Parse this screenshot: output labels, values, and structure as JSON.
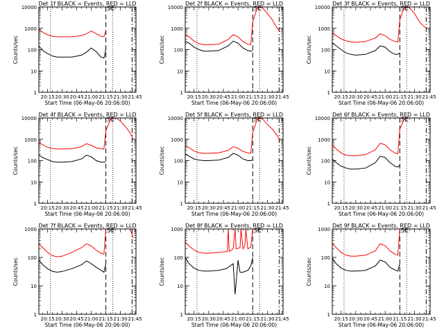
{
  "figure": {
    "x_title": "Start Time (06-May-06 20:06:00)",
    "y_title": "Counts/sec",
    "marker_label": "SE"
  },
  "chart_data": [
    {
      "type": "line",
      "title": "Det 1f BLACK = Events, RED = LLD",
      "xlabel": "Start Time (06-May-06 20:06:00)",
      "ylabel": "Counts/sec",
      "yscale": "log",
      "ylim": [
        1,
        10000
      ],
      "x_tick_labels": [
        "20:15",
        "20:30",
        "20:45",
        "21:00",
        "21:15",
        "21:30",
        "21:45"
      ],
      "y_tick_labels": [
        "1",
        "10",
        "100",
        "1000",
        "10000"
      ],
      "dotted_lines": [
        "20:18",
        "21:22"
      ],
      "dashed_lines": [
        "21:15",
        "21:42"
      ],
      "series": [
        {
          "name": "Events",
          "color": "#000000",
          "x": [
            "20:06",
            "20:10",
            "20:15",
            "20:20",
            "20:25",
            "20:30",
            "20:40",
            "20:50",
            "20:55",
            "21:00",
            "21:05",
            "21:10",
            "21:13",
            "21:14",
            "21:15"
          ],
          "values": [
            150,
            90,
            65,
            50,
            45,
            45,
            45,
            55,
            75,
            120,
            80,
            45,
            40,
            60,
            110
          ]
        },
        {
          "name": "LLD",
          "color": "#ff0000",
          "x": [
            "20:06",
            "20:10",
            "20:15",
            "20:20",
            "20:25",
            "20:30",
            "20:40",
            "20:50",
            "20:55",
            "21:00",
            "21:05",
            "21:10",
            "21:13",
            "21:14",
            "21:15"
          ],
          "values": [
            900,
            650,
            500,
            420,
            400,
            400,
            400,
            450,
            550,
            750,
            550,
            420,
            400,
            520,
            800
          ]
        }
      ]
    },
    {
      "type": "line",
      "title": "Det 2f BLACK = Events, RED = LLD",
      "xlabel": "Start Time (06-May-06 20:06:00)",
      "ylabel": "Counts/sec",
      "yscale": "log",
      "ylim": [
        1,
        10000
      ],
      "x_tick_labels": [
        "20:15",
        "20:30",
        "20:45",
        "21:00",
        "21:15",
        "21:30",
        "21:45"
      ],
      "y_tick_labels": [
        "1",
        "10",
        "100",
        "1000",
        "10000"
      ],
      "dotted_lines": [
        "20:18",
        "21:22"
      ],
      "dashed_lines": [
        "21:15",
        "21:42"
      ],
      "series": [
        {
          "name": "Events",
          "color": "#000000",
          "x": [
            "20:06",
            "20:10",
            "20:15",
            "20:20",
            "20:25",
            "20:30",
            "20:40",
            "20:50",
            "20:55",
            "21:00",
            "21:05",
            "21:10",
            "21:13",
            "21:15"
          ],
          "values": [
            250,
            200,
            130,
            100,
            85,
            85,
            90,
            150,
            250,
            200,
            120,
            90,
            85,
            90
          ]
        },
        {
          "name": "LLD",
          "color": "#ff0000",
          "x": [
            "20:06",
            "20:10",
            "20:15",
            "20:20",
            "20:25",
            "20:30",
            "20:40",
            "20:50",
            "20:55",
            "21:00",
            "21:05",
            "21:10",
            "21:13",
            "21:15",
            "21:20",
            "21:25",
            "21:30",
            "21:35",
            "21:40",
            "21:43"
          ],
          "values": [
            500,
            400,
            250,
            190,
            170,
            170,
            180,
            300,
            500,
            400,
            240,
            180,
            170,
            2000,
            10000,
            9000,
            5000,
            2500,
            1000,
            700
          ]
        }
      ]
    },
    {
      "type": "line",
      "title": "Det 3f BLACK = Events, RED = LLD",
      "xlabel": "Start Time (06-May-06 20:06:00)",
      "ylabel": "Counts/sec",
      "yscale": "log",
      "ylim": [
        1,
        10000
      ],
      "x_tick_labels": [
        "20:15",
        "20:30",
        "20:45",
        "21:00",
        "21:15",
        "21:30",
        "21:45"
      ],
      "y_tick_labels": [
        "1",
        "10",
        "100",
        "1000",
        "10000"
      ],
      "dotted_lines": [
        "20:18",
        "21:22"
      ],
      "dashed_lines": [
        "21:15",
        "21:42"
      ],
      "series": [
        {
          "name": "Events",
          "color": "#000000",
          "x": [
            "20:06",
            "20:10",
            "20:15",
            "20:20",
            "20:25",
            "20:30",
            "20:40",
            "20:50",
            "20:55",
            "21:00",
            "21:05",
            "21:10",
            "21:13",
            "21:15"
          ],
          "values": [
            200,
            150,
            100,
            70,
            60,
            55,
            60,
            90,
            150,
            130,
            80,
            60,
            60,
            70
          ]
        },
        {
          "name": "LLD",
          "color": "#ff0000",
          "x": [
            "20:06",
            "20:10",
            "20:15",
            "20:20",
            "20:25",
            "20:30",
            "20:40",
            "20:50",
            "20:55",
            "21:00",
            "21:05",
            "21:10",
            "21:13",
            "21:15",
            "21:20",
            "21:25",
            "21:30",
            "21:35",
            "21:40",
            "21:43"
          ],
          "values": [
            600,
            450,
            320,
            260,
            230,
            220,
            240,
            350,
            550,
            450,
            300,
            240,
            230,
            2500,
            11000,
            9000,
            5000,
            2000,
            1200,
            1000
          ]
        }
      ]
    },
    {
      "type": "line",
      "title": "Det 4f BLACK = Events, RED = LLD",
      "xlabel": "Start Time (06-May-06 20:06:00)",
      "ylabel": "Counts/sec",
      "yscale": "log",
      "ylim": [
        1,
        10000
      ],
      "x_tick_labels": [
        "20:15",
        "20:30",
        "20:45",
        "21:00",
        "21:15",
        "21:30",
        "21:45"
      ],
      "y_tick_labels": [
        "1",
        "10",
        "100",
        "1000",
        "10000"
      ],
      "dotted_lines": [
        "20:18",
        "21:22"
      ],
      "dashed_lines": [
        "21:15",
        "21:42"
      ],
      "series": [
        {
          "name": "Events",
          "color": "#000000",
          "x": [
            "20:06",
            "20:10",
            "20:15",
            "20:20",
            "20:25",
            "20:30",
            "20:40",
            "20:50",
            "20:55",
            "21:00",
            "21:05",
            "21:10",
            "21:13",
            "21:15"
          ],
          "values": [
            180,
            140,
            110,
            90,
            85,
            85,
            90,
            120,
            180,
            150,
            100,
            85,
            85,
            90
          ]
        },
        {
          "name": "LLD",
          "color": "#ff0000",
          "x": [
            "20:06",
            "20:10",
            "20:15",
            "20:20",
            "20:25",
            "20:30",
            "20:40",
            "20:50",
            "20:55",
            "21:00",
            "21:05",
            "21:10",
            "21:13",
            "21:15",
            "21:20",
            "21:25",
            "21:30",
            "21:35",
            "21:40",
            "21:43"
          ],
          "values": [
            700,
            550,
            420,
            370,
            350,
            350,
            360,
            450,
            620,
            520,
            400,
            360,
            350,
            2500,
            9000,
            11000,
            7000,
            4000,
            2000,
            1000
          ]
        }
      ]
    },
    {
      "type": "line",
      "title": "Det 5f BLACK = Events, RED = LLD",
      "xlabel": "Start Time (06-May-06 20:06:00)",
      "ylabel": "Counts/sec",
      "yscale": "log",
      "ylim": [
        1,
        10000
      ],
      "x_tick_labels": [
        "20:15",
        "20:30",
        "20:45",
        "21:00",
        "21:15",
        "21:30",
        "21:45"
      ],
      "y_tick_labels": [
        "1",
        "10",
        "100",
        "1000",
        "10000"
      ],
      "dotted_lines": [
        "20:18",
        "21:22"
      ],
      "dashed_lines": [
        "21:15",
        "21:42"
      ],
      "series": [
        {
          "name": "Events",
          "color": "#000000",
          "x": [
            "20:06",
            "20:10",
            "20:15",
            "20:20",
            "20:25",
            "20:30",
            "20:40",
            "20:50",
            "20:55",
            "21:00",
            "21:05",
            "21:10",
            "21:13",
            "21:15"
          ],
          "values": [
            200,
            160,
            120,
            105,
            100,
            100,
            105,
            140,
            220,
            180,
            120,
            100,
            100,
            110
          ]
        },
        {
          "name": "LLD",
          "color": "#ff0000",
          "x": [
            "20:06",
            "20:10",
            "20:15",
            "20:20",
            "20:25",
            "20:30",
            "20:40",
            "20:50",
            "20:55",
            "21:00",
            "21:05",
            "21:10",
            "21:13",
            "21:15",
            "21:20",
            "21:25",
            "21:30",
            "21:35",
            "21:40",
            "21:43"
          ],
          "values": [
            500,
            400,
            280,
            230,
            220,
            220,
            230,
            300,
            450,
            380,
            270,
            230,
            220,
            2000,
            10000,
            9000,
            5000,
            3000,
            1500,
            800
          ]
        }
      ]
    },
    {
      "type": "line",
      "title": "Det 6f BLACK = Events, RED = LLD",
      "xlabel": "Start Time (06-May-06 20:06:00)",
      "ylabel": "Counts/sec",
      "yscale": "log",
      "ylim": [
        1,
        10000
      ],
      "x_tick_labels": [
        "20:15",
        "20:30",
        "20:45",
        "21:00",
        "21:15",
        "21:30",
        "21:45"
      ],
      "y_tick_labels": [
        "1",
        "10",
        "100",
        "1000",
        "10000"
      ],
      "dotted_lines": [
        "20:18",
        "21:22"
      ],
      "dashed_lines": [
        "21:15",
        "21:42"
      ],
      "series": [
        {
          "name": "Events",
          "color": "#000000",
          "x": [
            "20:06",
            "20:10",
            "20:15",
            "20:20",
            "20:25",
            "20:30",
            "20:40",
            "20:50",
            "20:55",
            "21:00",
            "21:05",
            "21:10",
            "21:13",
            "21:15"
          ],
          "values": [
            120,
            80,
            55,
            45,
            40,
            40,
            45,
            80,
            160,
            140,
            80,
            55,
            50,
            60
          ]
        },
        {
          "name": "LLD",
          "color": "#ff0000",
          "x": [
            "20:06",
            "20:10",
            "20:15",
            "20:20",
            "20:25",
            "20:30",
            "20:40",
            "20:50",
            "20:55",
            "21:00",
            "21:05",
            "21:10",
            "21:13",
            "21:15",
            "21:20",
            "21:25",
            "21:30",
            "21:35",
            "21:40",
            "21:43"
          ],
          "values": [
            550,
            350,
            230,
            180,
            170,
            170,
            190,
            320,
            650,
            550,
            320,
            230,
            210,
            3000,
            10000,
            10000,
            10000,
            10000,
            10000,
            10000
          ]
        }
      ]
    },
    {
      "type": "line",
      "title": "Det 7f BLACK = Events, RED = LLD",
      "xlabel": "Start Time (06-May-06 20:06:00)",
      "ylabel": "Counts/sec",
      "yscale": "log",
      "ylim": [
        1,
        1000
      ],
      "x_tick_labels": [
        "20:15",
        "20:30",
        "20:45",
        "21:00",
        "21:15",
        "21:30",
        "21:45"
      ],
      "y_tick_labels": [
        "1",
        "10",
        "100",
        "1000"
      ],
      "dotted_lines": [
        "20:18",
        "21:22"
      ],
      "dashed_lines": [
        "21:15",
        "21:42"
      ],
      "series": [
        {
          "name": "Events",
          "color": "#000000",
          "x": [
            "20:06",
            "20:10",
            "20:15",
            "20:20",
            "20:25",
            "20:30",
            "20:40",
            "20:50",
            "20:55",
            "21:00",
            "21:05",
            "21:10",
            "21:13",
            "21:15"
          ],
          "values": [
            80,
            55,
            40,
            32,
            30,
            32,
            40,
            55,
            75,
            60,
            45,
            35,
            30,
            60
          ]
        },
        {
          "name": "LLD",
          "color": "#ff0000",
          "x": [
            "20:06",
            "20:10",
            "20:15",
            "20:20",
            "20:25",
            "20:30",
            "20:40",
            "20:50",
            "20:55",
            "21:00",
            "21:05",
            "21:10",
            "21:13",
            "21:15",
            "21:20",
            "21:30",
            "21:40",
            "21:43"
          ],
          "values": [
            300,
            220,
            150,
            115,
            105,
            110,
            150,
            220,
            300,
            250,
            180,
            140,
            130,
            1000,
            1000,
            1000,
            1000,
            500
          ]
        }
      ]
    },
    {
      "type": "line",
      "title": "Det 8f BLACK = Events, RED = LLD",
      "xlabel": "Start Time (06-May-06 20:06:00)",
      "ylabel": "Counts/sec",
      "yscale": "log",
      "ylim": [
        1,
        1000
      ],
      "x_tick_labels": [
        "20:15",
        "20:30",
        "20:45",
        "21:00",
        "21:15",
        "21:30",
        "21:45"
      ],
      "y_tick_labels": [
        "1",
        "10",
        "100",
        "1000"
      ],
      "dotted_lines": [
        "20:18",
        "21:22"
      ],
      "dashed_lines": [
        "21:15",
        "21:42"
      ],
      "series": [
        {
          "name": "Events",
          "color": "#000000",
          "x": [
            "20:06",
            "20:10",
            "20:15",
            "20:20",
            "20:25",
            "20:30",
            "20:40",
            "20:48",
            "20:55",
            "20:57",
            "21:00",
            "21:02",
            "21:05",
            "21:10",
            "21:13",
            "21:15"
          ],
          "values": [
            100,
            60,
            42,
            35,
            33,
            33,
            35,
            40,
            60,
            5,
            80,
            30,
            30,
            35,
            50,
            100
          ]
        },
        {
          "name": "LLD",
          "color": "#ff0000",
          "x": [
            "20:06",
            "20:10",
            "20:15",
            "20:20",
            "20:25",
            "20:30",
            "20:40",
            "20:49",
            "20:50",
            "20:51",
            "20:55",
            "20:57",
            "20:58",
            "21:02",
            "21:03",
            "21:05",
            "21:07",
            "21:08",
            "21:10",
            "21:13",
            "21:15"
          ],
          "values": [
            350,
            250,
            180,
            150,
            140,
            140,
            150,
            160,
            1000,
            160,
            200,
            1000,
            200,
            220,
            1000,
            200,
            260,
            1000,
            200,
            230,
            1000
          ]
        }
      ]
    },
    {
      "type": "line",
      "title": "Det 9f BLACK = Events, RED = LLD",
      "xlabel": "Start Time (06-May-06 20:06:00)",
      "ylabel": "Counts/sec",
      "yscale": "log",
      "ylim": [
        1,
        1000
      ],
      "x_tick_labels": [
        "20:15",
        "20:30",
        "20:45",
        "21:00",
        "21:15",
        "21:30",
        "21:45"
      ],
      "y_tick_labels": [
        "1",
        "10",
        "100",
        "1000"
      ],
      "dotted_lines": [
        "20:18",
        "21:22"
      ],
      "dashed_lines": [
        "21:15",
        "21:42"
      ],
      "series": [
        {
          "name": "Events",
          "color": "#000000",
          "x": [
            "20:06",
            "20:10",
            "20:15",
            "20:20",
            "20:25",
            "20:30",
            "20:40",
            "20:50",
            "20:55",
            "21:00",
            "21:05",
            "21:10",
            "21:13",
            "21:15"
          ],
          "values": [
            90,
            60,
            42,
            35,
            33,
            33,
            35,
            50,
            80,
            70,
            45,
            36,
            33,
            60
          ]
        },
        {
          "name": "LLD",
          "color": "#ff0000",
          "x": [
            "20:06",
            "20:10",
            "20:15",
            "20:20",
            "20:25",
            "20:30",
            "20:40",
            "20:50",
            "20:55",
            "21:00",
            "21:05",
            "21:10",
            "21:13",
            "21:15",
            "21:20",
            "21:30",
            "21:40",
            "21:43"
          ],
          "values": [
            300,
            220,
            150,
            120,
            110,
            110,
            120,
            170,
            300,
            260,
            170,
            130,
            120,
            1000,
            1000,
            1000,
            1000,
            1000
          ]
        }
      ]
    }
  ]
}
